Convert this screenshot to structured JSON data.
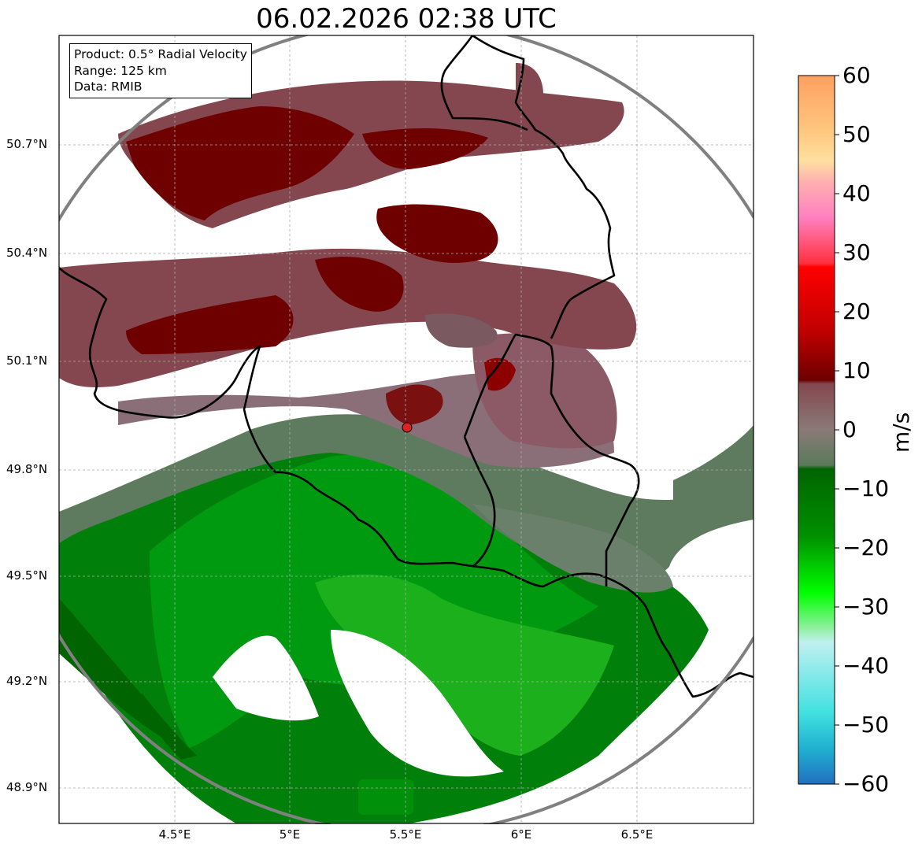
{
  "title": "06.02.2026 02:38 UTC",
  "info": {
    "product": "Product: 0.5° Radial Velocity",
    "range": "Range: 125 km",
    "data": "Data: RMIB"
  },
  "axes": {
    "lat_ticks": [
      "50.7°N",
      "50.4°N",
      "50.1°N",
      "49.8°N",
      "49.5°N",
      "49.2°N",
      "48.9°N"
    ],
    "lon_ticks": [
      "4.5°E",
      "5°E",
      "5.5°E",
      "6°E",
      "6.5°E"
    ]
  },
  "colorbar": {
    "unit": "m/s",
    "ticks": [
      "60",
      "50",
      "40",
      "30",
      "20",
      "10",
      "0",
      "−10",
      "−20",
      "−30",
      "−40",
      "−50",
      "−60"
    ],
    "range": [
      -60,
      60
    ]
  },
  "colors": {
    "outbound_dark": "#6e0000",
    "outbound_light": "#84474f",
    "near_zero_pos": "#8a6a72",
    "near_zero_neg": "#5f7a5f",
    "inbound_dark": "#006400",
    "inbound_mid": "#008c00",
    "inbound_light": "#19b419",
    "radar_site": "#dd2222",
    "range_ring": "#808080"
  }
}
